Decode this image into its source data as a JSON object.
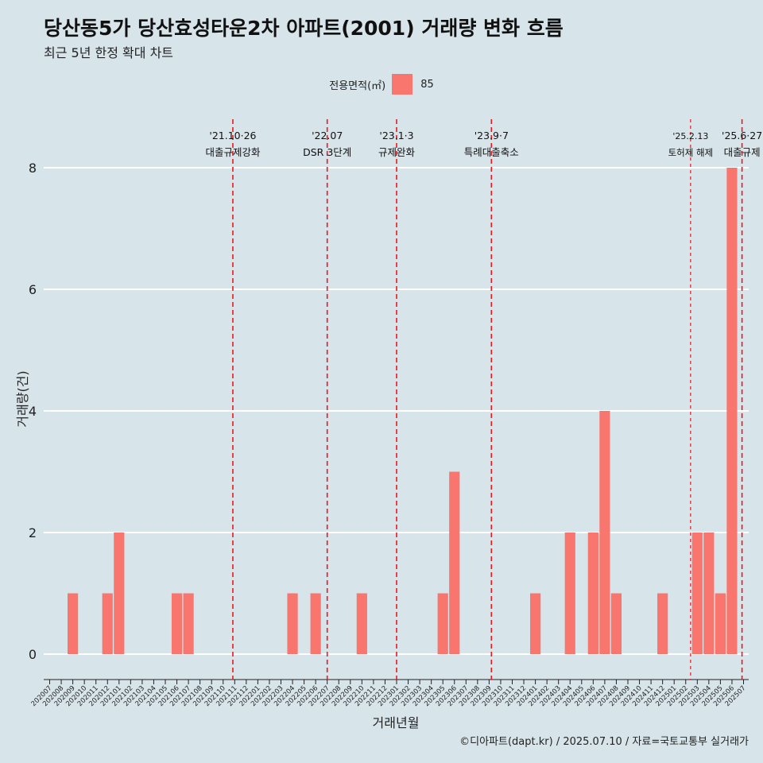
{
  "title": "당산동5가 당산효성타운2차 아파트(2001) 거래량 변화 흐름",
  "subtitle": "최근 5년 한정 확대 차트",
  "caption": "©디아파트(dapt.kr) / 2025.07.10 / 자료=국토교통부 실거래가",
  "legend": {
    "title": "전용면적(㎡)",
    "label": "85"
  },
  "colors": {
    "bar": "#f8766d",
    "background": "#d7e4ea",
    "event_line": "#e8191e",
    "grid": "#ffffff"
  },
  "chart_data": {
    "type": "bar",
    "xlabel": "거래년월",
    "ylabel": "거래량(건)",
    "ylim": [
      0,
      8
    ],
    "y_ticks": [
      0,
      2,
      4,
      6,
      8
    ],
    "grid": true,
    "legend_position": "top",
    "categories": [
      "202007",
      "202008",
      "202009",
      "202010",
      "202011",
      "202012",
      "202101",
      "202102",
      "202103",
      "202104",
      "202105",
      "202106",
      "202107",
      "202108",
      "202109",
      "202110",
      "202111",
      "202112",
      "202201",
      "202202",
      "202203",
      "202204",
      "202205",
      "202206",
      "202207",
      "202208",
      "202209",
      "202210",
      "202211",
      "202212",
      "202301",
      "202302",
      "202303",
      "202304",
      "202305",
      "202306",
      "202307",
      "202308",
      "202309",
      "202310",
      "202311",
      "202312",
      "202401",
      "202402",
      "202403",
      "202404",
      "202405",
      "202406",
      "202407",
      "202408",
      "202409",
      "202410",
      "202411",
      "202412",
      "202501",
      "202502",
      "202503",
      "202504",
      "202505",
      "202506",
      "202507"
    ],
    "series": [
      {
        "name": "85",
        "values": [
          0,
          0,
          1,
          0,
          0,
          1,
          2,
          0,
          0,
          0,
          0,
          1,
          1,
          0,
          0,
          0,
          0,
          0,
          0,
          0,
          0,
          1,
          0,
          1,
          0,
          0,
          0,
          1,
          0,
          0,
          0,
          0,
          0,
          0,
          1,
          3,
          0,
          0,
          0,
          0,
          0,
          0,
          1,
          0,
          0,
          2,
          0,
          2,
          4,
          1,
          0,
          0,
          0,
          1,
          0,
          0,
          2,
          2,
          1,
          8,
          0
        ]
      }
    ],
    "events": [
      {
        "x": "202110",
        "offset": 0.84,
        "date": "'21.10·26",
        "label": "대출규제강화",
        "dashed_fine": false
      },
      {
        "x": "202207",
        "offset": 0.0,
        "date": "'22.07",
        "label": "DSR 3단계",
        "dashed_fine": false
      },
      {
        "x": "202301",
        "offset": 0.0,
        "date": "'23.1·3",
        "label": "규제완화",
        "dashed_fine": false
      },
      {
        "x": "202309",
        "offset": 0.2,
        "date": "'23.9·7",
        "label": "특례대출축소",
        "dashed_fine": false
      },
      {
        "x": "202502",
        "offset": 0.42,
        "date": "'25.2.13",
        "label": "토허제 해제",
        "dashed_fine": true
      },
      {
        "x": "202506",
        "offset": 0.87,
        "date": "'25.6·27",
        "label": "대출규제",
        "dashed_fine": false
      }
    ]
  }
}
